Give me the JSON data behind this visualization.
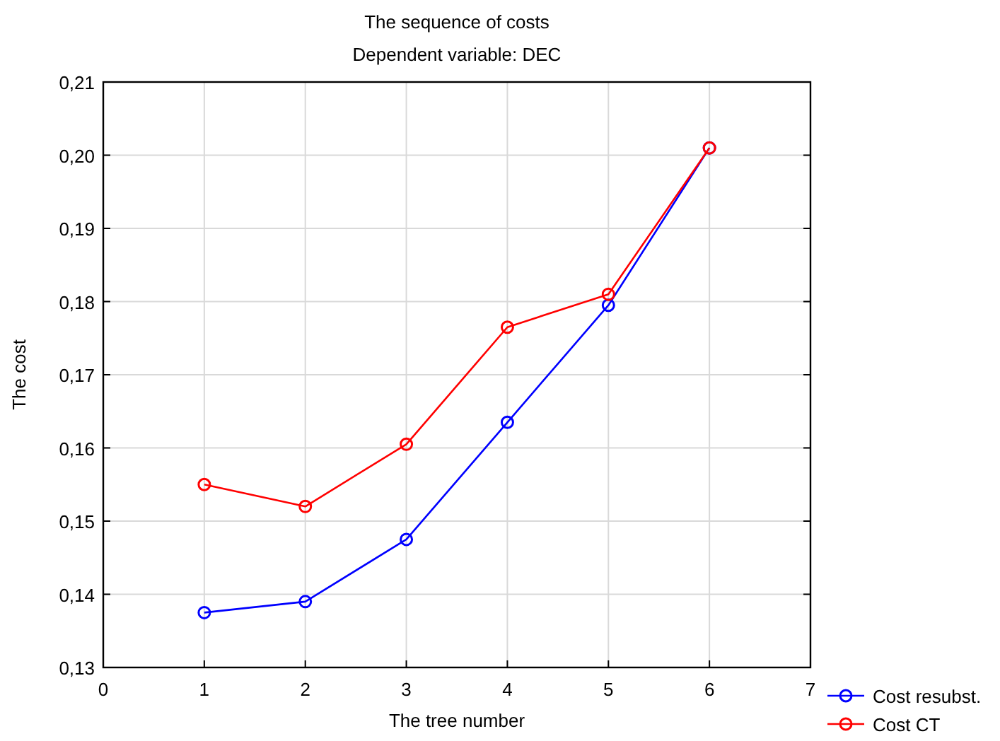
{
  "chart_data": {
    "type": "line",
    "title": "The sequence of costs",
    "subtitle": "Dependent variable: DEC",
    "xlabel": "The tree number",
    "ylabel": "The cost",
    "x": [
      1,
      2,
      3,
      4,
      5,
      6
    ],
    "series": [
      {
        "name": "Cost resubst.",
        "color": "#0000ff",
        "values": [
          0.1375,
          0.139,
          0.1475,
          0.1635,
          0.1795,
          0.201
        ]
      },
      {
        "name": "Cost CT",
        "color": "#ff0000",
        "values": [
          0.155,
          0.152,
          0.1605,
          0.1765,
          0.181,
          0.201
        ]
      }
    ],
    "xlim": [
      0,
      7
    ],
    "xticks": [
      0,
      1,
      2,
      3,
      4,
      5,
      6,
      7
    ],
    "ylim": [
      0.13,
      0.21
    ],
    "yticks": [
      {
        "value": 0.13,
        "label": "0,13"
      },
      {
        "value": 0.14,
        "label": "0,14"
      },
      {
        "value": 0.15,
        "label": "0,15"
      },
      {
        "value": 0.16,
        "label": "0,16"
      },
      {
        "value": 0.17,
        "label": "0,17"
      },
      {
        "value": 0.18,
        "label": "0,18"
      },
      {
        "value": 0.19,
        "label": "0,19"
      },
      {
        "value": 0.2,
        "label": "0,20"
      },
      {
        "value": 0.21,
        "label": "0,21"
      }
    ],
    "grid": true,
    "legend": "bottom right",
    "marker": "circle",
    "line_style": "solid"
  }
}
